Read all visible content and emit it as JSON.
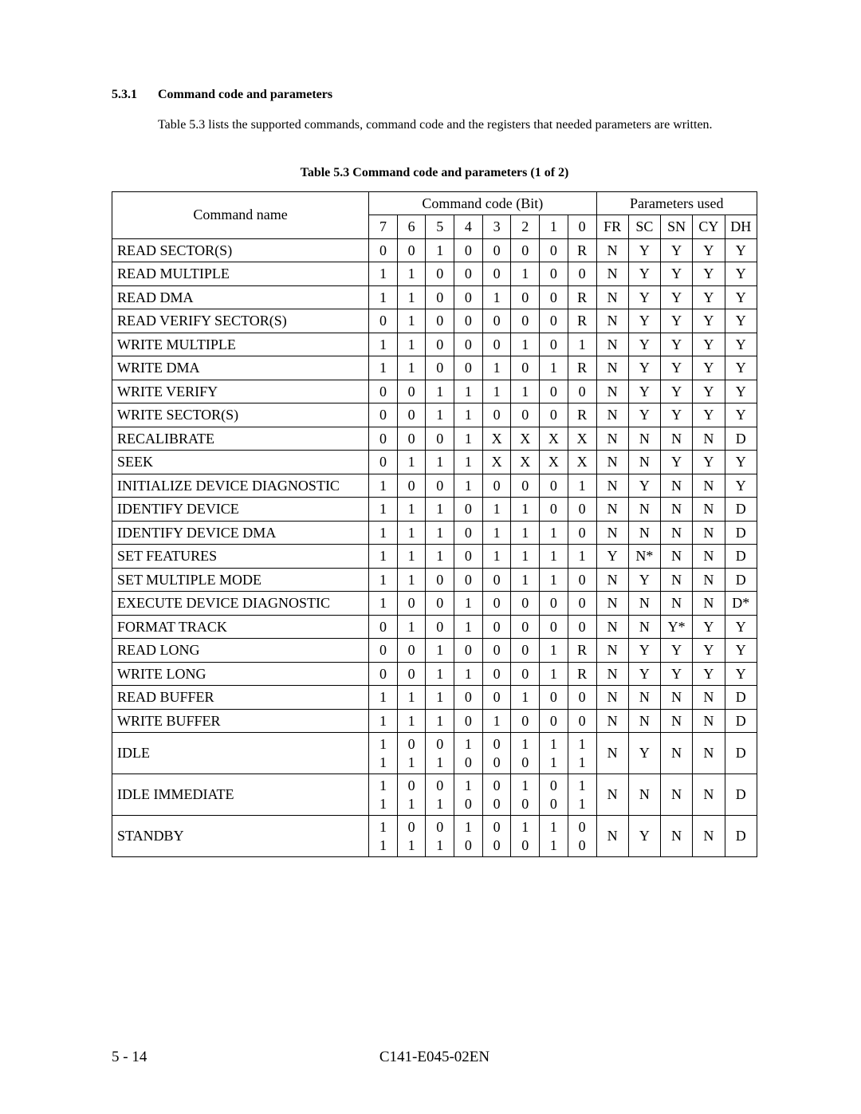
{
  "section_number": "5.3.1",
  "section_title": "Command code and parameters",
  "intro_text": "Table 5.3 lists the supported commands, command code and the registers that needed parameters are written.",
  "table_caption": "Table 5.3    Command code and parameters (1 of 2)",
  "header": {
    "command_name": "Command name",
    "command_code_group": "Command code (Bit)",
    "parameters_group": "Parameters used",
    "bits": [
      "7",
      "6",
      "5",
      "4",
      "3",
      "2",
      "1",
      "0"
    ],
    "params": [
      "FR",
      "SC",
      "SN",
      "CY",
      "DH"
    ]
  },
  "rows": [
    {
      "name": "READ SECTOR(S)",
      "bits": [
        "0",
        "0",
        "1",
        "0",
        "0",
        "0",
        "0",
        "R"
      ],
      "params": [
        "N",
        "Y",
        "Y",
        "Y",
        "Y"
      ]
    },
    {
      "name": "READ MULTIPLE",
      "bits": [
        "1",
        "1",
        "0",
        "0",
        "0",
        "1",
        "0",
        "0"
      ],
      "params": [
        "N",
        "Y",
        "Y",
        "Y",
        "Y"
      ]
    },
    {
      "name": "READ DMA",
      "bits": [
        "1",
        "1",
        "0",
        "0",
        "1",
        "0",
        "0",
        "R"
      ],
      "params": [
        "N",
        "Y",
        "Y",
        "Y",
        "Y"
      ]
    },
    {
      "name": "READ VERIFY SECTOR(S)",
      "bits": [
        "0",
        "1",
        "0",
        "0",
        "0",
        "0",
        "0",
        "R"
      ],
      "params": [
        "N",
        "Y",
        "Y",
        "Y",
        "Y"
      ]
    },
    {
      "name": "WRITE MULTIPLE",
      "bits": [
        "1",
        "1",
        "0",
        "0",
        "0",
        "1",
        "0",
        "1"
      ],
      "params": [
        "N",
        "Y",
        "Y",
        "Y",
        "Y"
      ]
    },
    {
      "name": "WRITE DMA",
      "bits": [
        "1",
        "1",
        "0",
        "0",
        "1",
        "0",
        "1",
        "R"
      ],
      "params": [
        "N",
        "Y",
        "Y",
        "Y",
        "Y"
      ]
    },
    {
      "name": "WRITE VERIFY",
      "bits": [
        "0",
        "0",
        "1",
        "1",
        "1",
        "1",
        "0",
        "0"
      ],
      "params": [
        "N",
        "Y",
        "Y",
        "Y",
        "Y"
      ]
    },
    {
      "name": "WRITE SECTOR(S)",
      "bits": [
        "0",
        "0",
        "1",
        "1",
        "0",
        "0",
        "0",
        "R"
      ],
      "params": [
        "N",
        "Y",
        "Y",
        "Y",
        "Y"
      ]
    },
    {
      "name": "RECALIBRATE",
      "bits": [
        "0",
        "0",
        "0",
        "1",
        "X",
        "X",
        "X",
        "X"
      ],
      "params": [
        "N",
        "N",
        "N",
        "N",
        "D"
      ]
    },
    {
      "name": "SEEK",
      "bits": [
        "0",
        "1",
        "1",
        "1",
        "X",
        "X",
        "X",
        "X"
      ],
      "params": [
        "N",
        "N",
        "Y",
        "Y",
        "Y"
      ]
    },
    {
      "name": "INITIALIZE DEVICE DIAGNOSTIC",
      "bits": [
        "1",
        "0",
        "0",
        "1",
        "0",
        "0",
        "0",
        "1"
      ],
      "params": [
        "N",
        "Y",
        "N",
        "N",
        "Y"
      ]
    },
    {
      "name": "IDENTIFY DEVICE",
      "bits": [
        "1",
        "1",
        "1",
        "0",
        "1",
        "1",
        "0",
        "0"
      ],
      "params": [
        "N",
        "N",
        "N",
        "N",
        "D"
      ]
    },
    {
      "name": "IDENTIFY DEVICE DMA",
      "bits": [
        "1",
        "1",
        "1",
        "0",
        "1",
        "1",
        "1",
        "0"
      ],
      "params": [
        "N",
        "N",
        "N",
        "N",
        "D"
      ]
    },
    {
      "name": "SET FEATURES",
      "bits": [
        "1",
        "1",
        "1",
        "0",
        "1",
        "1",
        "1",
        "1"
      ],
      "params": [
        "Y",
        "N*",
        "N",
        "N",
        "D"
      ]
    },
    {
      "name": "SET MULTIPLE MODE",
      "bits": [
        "1",
        "1",
        "0",
        "0",
        "0",
        "1",
        "1",
        "0"
      ],
      "params": [
        "N",
        "Y",
        "N",
        "N",
        "D"
      ]
    },
    {
      "name": "EXECUTE DEVICE DIAGNOSTIC",
      "bits": [
        "1",
        "0",
        "0",
        "1",
        "0",
        "0",
        "0",
        "0"
      ],
      "params": [
        "N",
        "N",
        "N",
        "N",
        "D*"
      ]
    },
    {
      "name": "FORMAT TRACK",
      "bits": [
        "0",
        "1",
        "0",
        "1",
        "0",
        "0",
        "0",
        "0"
      ],
      "params": [
        "N",
        "N",
        "Y*",
        "Y",
        "Y"
      ]
    },
    {
      "name": "READ LONG",
      "bits": [
        "0",
        "0",
        "1",
        "0",
        "0",
        "0",
        "1",
        "R"
      ],
      "params": [
        "N",
        "Y",
        "Y",
        "Y",
        "Y"
      ]
    },
    {
      "name": "WRITE LONG",
      "bits": [
        "0",
        "0",
        "1",
        "1",
        "0",
        "0",
        "1",
        "R"
      ],
      "params": [
        "N",
        "Y",
        "Y",
        "Y",
        "Y"
      ]
    },
    {
      "name": "READ BUFFER",
      "bits": [
        "1",
        "1",
        "1",
        "0",
        "0",
        "1",
        "0",
        "0"
      ],
      "params": [
        "N",
        "N",
        "N",
        "N",
        "D"
      ]
    },
    {
      "name": "WRITE BUFFER",
      "bits": [
        "1",
        "1",
        "1",
        "0",
        "1",
        "0",
        "0",
        "0"
      ],
      "params": [
        "N",
        "N",
        "N",
        "N",
        "D"
      ]
    },
    {
      "name": "IDLE",
      "bits": [
        "1\n1",
        "0\n1",
        "0\n1",
        "1\n0",
        "0\n0",
        "1\n0",
        "1\n1",
        "1\n1"
      ],
      "params": [
        "N",
        "Y",
        "N",
        "N",
        "D"
      ]
    },
    {
      "name": "IDLE IMMEDIATE",
      "bits": [
        "1\n1",
        "0\n1",
        "0\n1",
        "1\n0",
        "0\n0",
        "1\n0",
        "0\n0",
        "1\n1"
      ],
      "params": [
        "N",
        "N",
        "N",
        "N",
        "D"
      ]
    },
    {
      "name": "STANDBY",
      "bits": [
        "1\n1",
        "0\n1",
        "0\n1",
        "1\n0",
        "0\n0",
        "1\n0",
        "1\n1",
        "0\n0"
      ],
      "params": [
        "N",
        "Y",
        "N",
        "N",
        "D"
      ]
    }
  ],
  "footer": {
    "left": "5 - 14",
    "center": "C141-E045-02EN"
  },
  "style": {
    "page_bg": "#ffffff",
    "text_color": "#000000",
    "body_fontsize": 19,
    "table_fontsize": 18,
    "border_color": "#000000"
  }
}
